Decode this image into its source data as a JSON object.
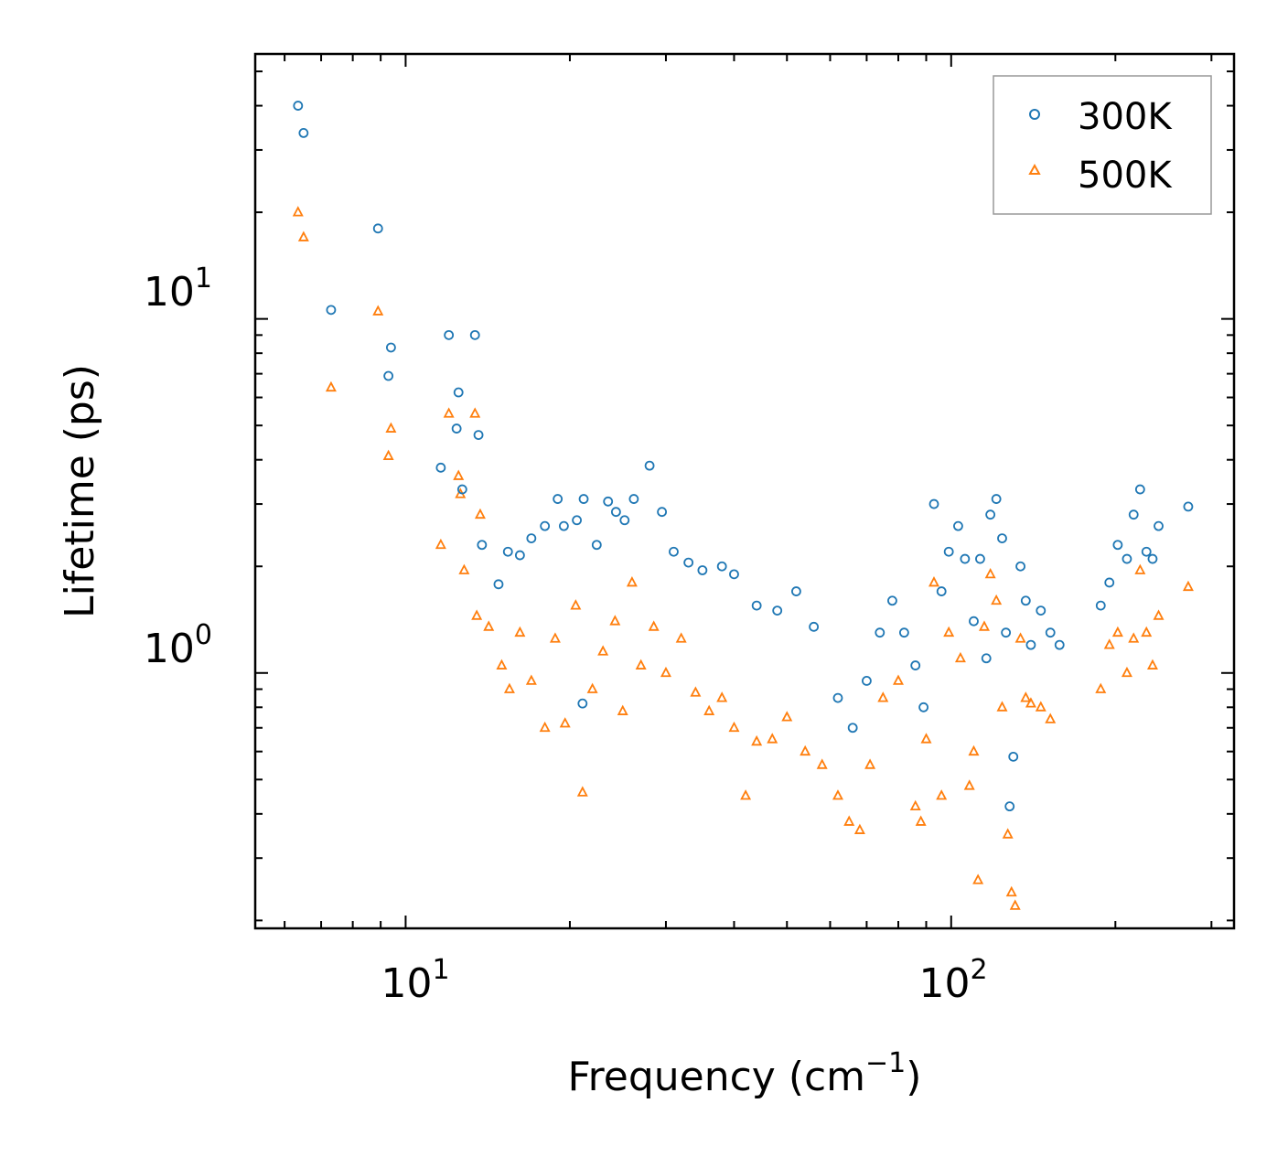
{
  "chart_data": {
    "type": "scatter",
    "xscale": "log",
    "yscale": "log",
    "xlim": [
      5.3,
      330
    ],
    "ylim": [
      0.19,
      56
    ],
    "xlabel": "Frequency (cm",
    "xlabel_sup": "−1",
    "xlabel_suffix": ")",
    "ylabel": "Lifetime (ps)",
    "xticks": [
      {
        "base": "10",
        "exp": "1",
        "value": 10
      },
      {
        "base": "10",
        "exp": "2",
        "value": 100
      }
    ],
    "yticks": [
      {
        "base": "10",
        "exp": "0",
        "value": 1
      },
      {
        "base": "10",
        "exp": "1",
        "value": 10
      }
    ],
    "legend_position": "top-right",
    "series": [
      {
        "name": "300K",
        "marker": "circle",
        "color": "#1f77b4",
        "points": [
          [
            6.35,
            40.0
          ],
          [
            6.5,
            33.5
          ],
          [
            7.3,
            10.6
          ],
          [
            8.9,
            18.0
          ],
          [
            9.3,
            6.9
          ],
          [
            9.4,
            8.3
          ],
          [
            11.6,
            3.8
          ],
          [
            12.0,
            9.0
          ],
          [
            12.5,
            6.2
          ],
          [
            12.4,
            4.9
          ],
          [
            12.7,
            3.3
          ],
          [
            13.4,
            9.0
          ],
          [
            13.6,
            4.7
          ],
          [
            13.8,
            2.3
          ],
          [
            14.8,
            1.78
          ],
          [
            15.4,
            2.2
          ],
          [
            16.2,
            2.15
          ],
          [
            17.0,
            2.4
          ],
          [
            18.0,
            2.6
          ],
          [
            19.0,
            3.1
          ],
          [
            19.5,
            2.6
          ],
          [
            20.6,
            2.7
          ],
          [
            21.2,
            3.1
          ],
          [
            21.1,
            0.82
          ],
          [
            22.4,
            2.3
          ],
          [
            23.5,
            3.05
          ],
          [
            24.3,
            2.85
          ],
          [
            25.2,
            2.7
          ],
          [
            26.2,
            3.1
          ],
          [
            28.0,
            3.85
          ],
          [
            29.5,
            2.85
          ],
          [
            31.0,
            2.2
          ],
          [
            33.0,
            2.05
          ],
          [
            35.0,
            1.95
          ],
          [
            38.0,
            2.0
          ],
          [
            40.0,
            1.9
          ],
          [
            44.0,
            1.55
          ],
          [
            48.0,
            1.5
          ],
          [
            52.0,
            1.7
          ],
          [
            56.0,
            1.35
          ],
          [
            62.0,
            0.85
          ],
          [
            66.0,
            0.7
          ],
          [
            70.0,
            0.95
          ],
          [
            74.0,
            1.3
          ],
          [
            78.0,
            1.6
          ],
          [
            82.0,
            1.3
          ],
          [
            86.0,
            1.05
          ],
          [
            89.0,
            0.8
          ],
          [
            93.0,
            3.0
          ],
          [
            96.0,
            1.7
          ],
          [
            99.0,
            2.2
          ],
          [
            103.0,
            2.6
          ],
          [
            106.0,
            2.1
          ],
          [
            110.0,
            1.4
          ],
          [
            113.0,
            2.1
          ],
          [
            116.0,
            1.1
          ],
          [
            118.0,
            2.8
          ],
          [
            121.0,
            3.1
          ],
          [
            124.0,
            2.4
          ],
          [
            126.0,
            1.3
          ],
          [
            128.0,
            0.42
          ],
          [
            130.0,
            0.58
          ],
          [
            134.0,
            2.0
          ],
          [
            137.0,
            1.6
          ],
          [
            140.0,
            1.2
          ],
          [
            146.0,
            1.5
          ],
          [
            152.0,
            1.3
          ],
          [
            158.0,
            1.2
          ],
          [
            188.0,
            1.55
          ],
          [
            195.0,
            1.8
          ],
          [
            202.0,
            2.3
          ],
          [
            210.0,
            2.1
          ],
          [
            216.0,
            2.8
          ],
          [
            222.0,
            3.3
          ],
          [
            228.0,
            2.2
          ],
          [
            234.0,
            2.1
          ],
          [
            240.0,
            2.6
          ],
          [
            272.0,
            2.95
          ]
        ]
      },
      {
        "name": "500K",
        "marker": "triangle",
        "color": "#ff7f0e",
        "points": [
          [
            6.35,
            20.0
          ],
          [
            6.5,
            17.0
          ],
          [
            7.3,
            6.4
          ],
          [
            8.9,
            10.5
          ],
          [
            9.3,
            4.1
          ],
          [
            9.4,
            4.9
          ],
          [
            11.6,
            2.3
          ],
          [
            12.0,
            5.4
          ],
          [
            12.5,
            3.6
          ],
          [
            12.6,
            3.2
          ],
          [
            12.8,
            1.95
          ],
          [
            13.4,
            5.4
          ],
          [
            13.5,
            1.45
          ],
          [
            13.7,
            2.8
          ],
          [
            14.2,
            1.35
          ],
          [
            15.0,
            1.05
          ],
          [
            15.5,
            0.9
          ],
          [
            16.2,
            1.3
          ],
          [
            17.0,
            0.95
          ],
          [
            18.0,
            0.7
          ],
          [
            18.8,
            1.25
          ],
          [
            19.6,
            0.72
          ],
          [
            20.5,
            1.55
          ],
          [
            21.1,
            0.46
          ],
          [
            22.0,
            0.9
          ],
          [
            23.0,
            1.15
          ],
          [
            24.2,
            1.4
          ],
          [
            25.0,
            0.78
          ],
          [
            26.0,
            1.8
          ],
          [
            27.0,
            1.05
          ],
          [
            28.5,
            1.35
          ],
          [
            30.0,
            1.0
          ],
          [
            32.0,
            1.25
          ],
          [
            34.0,
            0.88
          ],
          [
            36.0,
            0.78
          ],
          [
            38.0,
            0.85
          ],
          [
            40.0,
            0.7
          ],
          [
            42.0,
            0.45
          ],
          [
            44.0,
            0.64
          ],
          [
            47.0,
            0.65
          ],
          [
            50.0,
            0.75
          ],
          [
            54.0,
            0.6
          ],
          [
            58.0,
            0.55
          ],
          [
            62.0,
            0.45
          ],
          [
            65.0,
            0.38
          ],
          [
            68.0,
            0.36
          ],
          [
            71.0,
            0.55
          ],
          [
            75.0,
            0.85
          ],
          [
            80.0,
            0.95
          ],
          [
            86.0,
            0.42
          ],
          [
            88.0,
            0.38
          ],
          [
            90.0,
            0.65
          ],
          [
            93.0,
            1.8
          ],
          [
            96.0,
            0.45
          ],
          [
            99.0,
            1.3
          ],
          [
            104.0,
            1.1
          ],
          [
            108.0,
            0.48
          ],
          [
            110.0,
            0.6
          ],
          [
            112.0,
            0.26
          ],
          [
            115.0,
            1.35
          ],
          [
            118.0,
            1.9
          ],
          [
            121.0,
            1.6
          ],
          [
            124.0,
            0.8
          ],
          [
            127.0,
            0.35
          ],
          [
            129.0,
            0.24
          ],
          [
            131.0,
            0.22
          ],
          [
            134.0,
            1.25
          ],
          [
            137.0,
            0.85
          ],
          [
            140.0,
            0.82
          ],
          [
            146.0,
            0.8
          ],
          [
            152.0,
            0.74
          ],
          [
            188.0,
            0.9
          ],
          [
            195.0,
            1.2
          ],
          [
            202.0,
            1.3
          ],
          [
            210.0,
            1.0
          ],
          [
            216.0,
            1.25
          ],
          [
            222.0,
            1.95
          ],
          [
            228.0,
            1.3
          ],
          [
            234.0,
            1.05
          ],
          [
            240.0,
            1.45
          ],
          [
            272.0,
            1.75
          ]
        ]
      }
    ]
  }
}
